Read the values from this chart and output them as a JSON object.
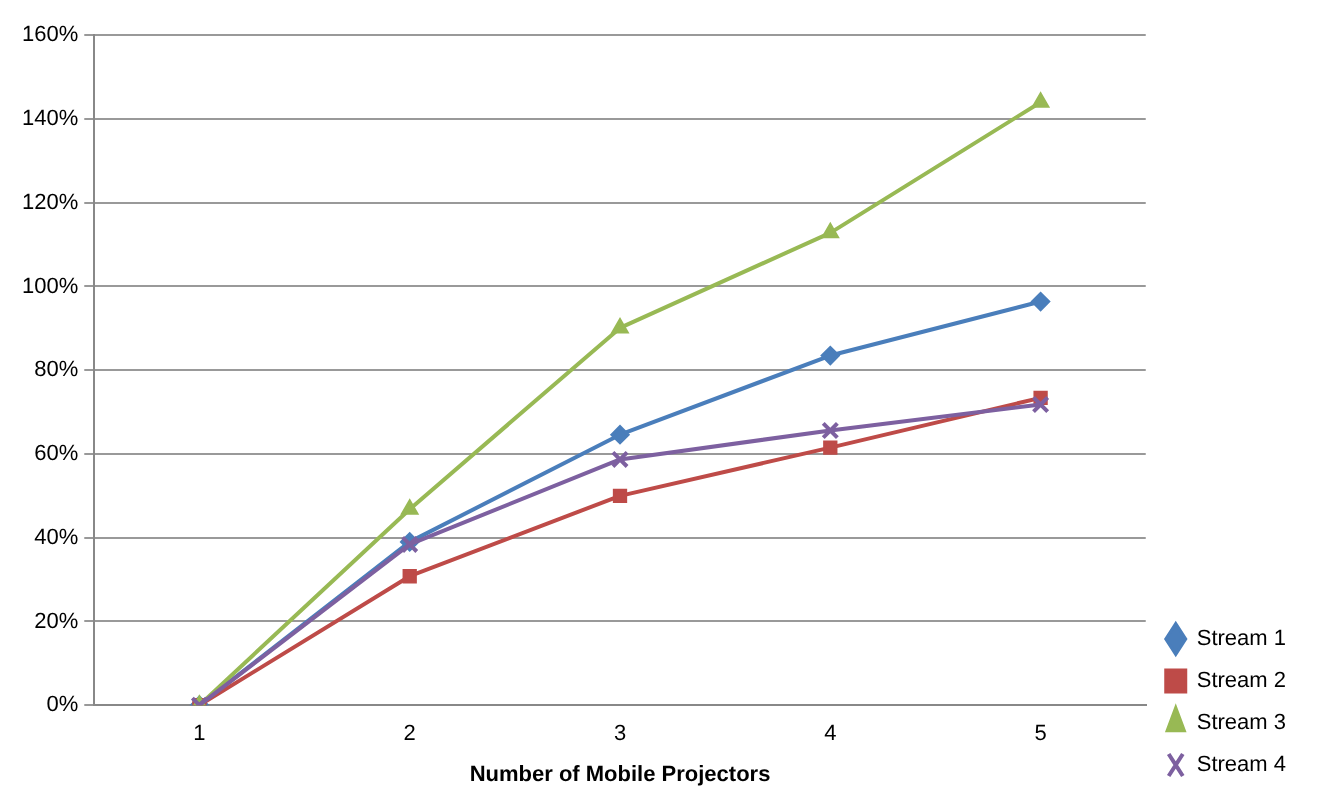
{
  "chart_data": {
    "type": "line",
    "xlabel": "Number of Mobile Projectors",
    "categories": [
      "1",
      "2",
      "3",
      "4",
      "5"
    ],
    "series": [
      {
        "name": "Stream 1",
        "color": "#4a7ebb",
        "marker": "diamond",
        "values": [
          0,
          39,
          64.6,
          83.5,
          96.4
        ]
      },
      {
        "name": "Stream 2",
        "color": "#be4b48",
        "marker": "square",
        "values": [
          0,
          30.8,
          50,
          61.5,
          73.4
        ]
      },
      {
        "name": "Stream 3",
        "color": "#98b954",
        "marker": "triangle",
        "values": [
          0,
          46.8,
          90.1,
          112.8,
          144
        ]
      },
      {
        "name": "Stream 4",
        "color": "#7d60a0",
        "marker": "cross",
        "values": [
          0,
          38.4,
          58.7,
          65.6,
          71.8
        ]
      }
    ],
    "ylim": [
      0,
      160
    ],
    "yticks": [
      {
        "value": 0,
        "label": "0%"
      },
      {
        "value": 20,
        "label": "20%"
      },
      {
        "value": 40,
        "label": "40%"
      },
      {
        "value": 60,
        "label": "60%"
      },
      {
        "value": 80,
        "label": "80%"
      },
      {
        "value": 100,
        "label": "100%"
      },
      {
        "value": 120,
        "label": "120%"
      },
      {
        "value": 140,
        "label": "140%"
      },
      {
        "value": 160,
        "label": "160%"
      }
    ],
    "grid": "y",
    "legend": "right"
  }
}
